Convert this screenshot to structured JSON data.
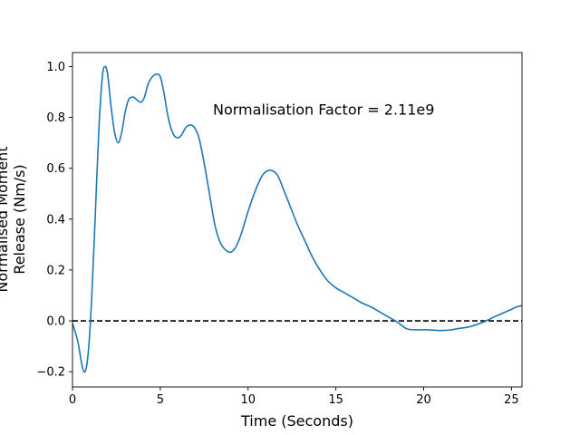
{
  "chart_data": {
    "type": "line",
    "title": "",
    "xlabel": "Time (Seconds)",
    "ylabel_lines": [
      "Normalised Moment",
      "Release (Nm/s)"
    ],
    "xlim": [
      0,
      25.6
    ],
    "ylim": [
      -0.26,
      1.055
    ],
    "xticks": [
      0,
      5,
      10,
      15,
      20,
      25
    ],
    "yticks": [
      -0.2,
      0.0,
      0.2,
      0.4,
      0.6,
      0.8,
      1.0
    ],
    "ytick_labels": [
      "−0.2",
      "0.0",
      "0.2",
      "0.4",
      "0.6",
      "0.8",
      "1.0"
    ],
    "grid": false,
    "annotation": {
      "text": "Normalisation Factor = 2.11e9",
      "x": 8.0,
      "y": 0.81
    },
    "reference_line": {
      "y": 0.0,
      "style": "dashed",
      "color": "#000000"
    },
    "series": [
      {
        "color": "#1f77b4",
        "x": [
          0.0,
          0.3,
          0.5,
          0.65,
          0.8,
          0.95,
          1.1,
          1.3,
          1.5,
          1.7,
          1.85,
          2.0,
          2.2,
          2.4,
          2.6,
          2.8,
          3.0,
          3.2,
          3.45,
          3.65,
          3.9,
          4.1,
          4.3,
          4.55,
          4.8,
          5.0,
          5.2,
          5.45,
          5.7,
          5.95,
          6.2,
          6.45,
          6.7,
          6.95,
          7.2,
          7.5,
          7.8,
          8.1,
          8.4,
          8.7,
          9.0,
          9.3,
          9.6,
          10.0,
          10.4,
          10.8,
          11.1,
          11.4,
          11.7,
          12.0,
          12.4,
          12.8,
          13.2,
          13.6,
          14.0,
          14.5,
          15.0,
          15.5,
          16.0,
          16.5,
          17.0,
          17.5,
          18.0,
          18.5,
          19.0,
          19.5,
          20.0,
          20.5,
          21.0,
          21.5,
          22.0,
          22.5,
          23.0,
          23.5,
          24.0,
          24.5,
          25.0,
          25.3,
          25.6
        ],
        "y": [
          -0.01,
          -0.08,
          -0.16,
          -0.2,
          -0.18,
          -0.08,
          0.1,
          0.42,
          0.75,
          0.96,
          1.0,
          0.97,
          0.84,
          0.74,
          0.7,
          0.74,
          0.82,
          0.87,
          0.88,
          0.87,
          0.86,
          0.88,
          0.93,
          0.96,
          0.97,
          0.96,
          0.9,
          0.8,
          0.74,
          0.72,
          0.73,
          0.76,
          0.77,
          0.76,
          0.72,
          0.62,
          0.5,
          0.38,
          0.31,
          0.28,
          0.27,
          0.29,
          0.34,
          0.43,
          0.51,
          0.57,
          0.59,
          0.59,
          0.57,
          0.52,
          0.45,
          0.38,
          0.32,
          0.26,
          0.21,
          0.16,
          0.13,
          0.11,
          0.09,
          0.07,
          0.055,
          0.035,
          0.015,
          -0.005,
          -0.03,
          -0.035,
          -0.035,
          -0.036,
          -0.038,
          -0.036,
          -0.03,
          -0.025,
          -0.015,
          -0.002,
          0.015,
          0.03,
          0.045,
          0.055,
          0.06
        ]
      }
    ]
  }
}
